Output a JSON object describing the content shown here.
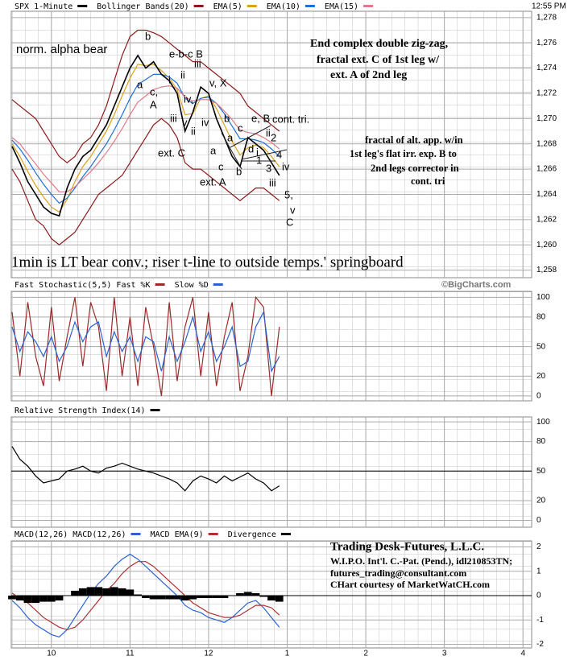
{
  "header": {
    "time": "12:55 PM",
    "credit": "©BigCharts.com"
  },
  "chart_data": [
    {
      "type": "line",
      "title": "SPX 1-Minute",
      "title_color": "#000000",
      "x": [
        9.5,
        9.6,
        9.7,
        9.8,
        9.9,
        10.0,
        10.1,
        10.2,
        10.3,
        10.4,
        10.5,
        10.6,
        10.7,
        10.8,
        10.9,
        11.0,
        11.1,
        11.2,
        11.3,
        11.4,
        11.5,
        11.6,
        11.7,
        11.8,
        11.9,
        12.0,
        12.1,
        12.2,
        12.3,
        12.4,
        12.5,
        12.6,
        12.7,
        12.8,
        12.9
      ],
      "values": [
        1267.8,
        1266.5,
        1265,
        1264,
        1263,
        1262.5,
        1262.3,
        1264.5,
        1266,
        1267,
        1267.5,
        1268.5,
        1269.5,
        1271,
        1272.5,
        1274,
        1275,
        1274,
        1274.5,
        1273.5,
        1273,
        1272,
        1269,
        1270.5,
        1272.5,
        1272,
        1270,
        1268.5,
        1267,
        1266.2,
        1268.5,
        1268,
        1267.5,
        1266.5,
        1265.5
      ],
      "bands": {
        "name": "Bollinger Bands(20)",
        "color": "#8b1a1a",
        "upper": [
          1271.5,
          1271,
          1270.5,
          1270,
          1269,
          1268,
          1267,
          1266.5,
          1267,
          1268,
          1268.5,
          1269.5,
          1271,
          1273,
          1275,
          1276.5,
          1277,
          1277,
          1276.8,
          1276.5,
          1276,
          1275.5,
          1275,
          1274.5,
          1274.5,
          1274,
          1273.5,
          1273,
          1272.5,
          1272,
          1271,
          1270.5,
          1270,
          1269.5,
          1269
        ],
        "lower": [
          1266,
          1265,
          1263.5,
          1262,
          1261.5,
          1260.5,
          1260,
          1260.5,
          1261,
          1262,
          1263,
          1264,
          1264.5,
          1265,
          1265.5,
          1266.5,
          1267.5,
          1268.5,
          1269.5,
          1270,
          1269.5,
          1268.5,
          1266.5,
          1266,
          1266,
          1265.5,
          1265,
          1264.5,
          1264,
          1263.5,
          1264,
          1264.5,
          1264.5,
          1264,
          1263.5
        ]
      },
      "series": [
        {
          "name": "EMA(5)",
          "color": "#d9a21b",
          "values": [
            1268,
            1267,
            1265.8,
            1264.7,
            1263.8,
            1263,
            1262.6,
            1263.6,
            1265,
            1266.2,
            1267,
            1268,
            1269,
            1270.3,
            1271.8,
            1273.2,
            1274.3,
            1274.2,
            1274.3,
            1273.8,
            1273.2,
            1272.3,
            1270.3,
            1270.4,
            1271.6,
            1271.8,
            1270.8,
            1269.5,
            1268.2,
            1267.1,
            1267.7,
            1267.9,
            1267.7,
            1267,
            1266.2
          ]
        },
        {
          "name": "EMA(10)",
          "color": "#1f6fd6",
          "values": [
            1268.3,
            1267.6,
            1266.7,
            1265.7,
            1264.8,
            1264,
            1263.3,
            1263.7,
            1264.5,
            1265.4,
            1266.2,
            1267.1,
            1268,
            1269.1,
            1270.3,
            1271.6,
            1272.7,
            1273.1,
            1273.5,
            1273.5,
            1273.3,
            1272.8,
            1271.6,
            1271.2,
            1271.6,
            1271.7,
            1271.2,
            1270.4,
            1269.4,
            1268.4,
            1268.4,
            1268.3,
            1268.1,
            1267.6,
            1267
          ]
        },
        {
          "name": "EMA(15)",
          "color": "#e07a8a",
          "values": [
            1268.5,
            1268,
            1267.2,
            1266.4,
            1265.6,
            1264.9,
            1264.2,
            1264.2,
            1264.6,
            1265.2,
            1265.8,
            1266.5,
            1267.3,
            1268.2,
            1269.2,
            1270.3,
            1271.3,
            1271.8,
            1272.3,
            1272.5,
            1272.6,
            1272.4,
            1271.7,
            1271.4,
            1271.5,
            1271.5,
            1271.2,
            1270.6,
            1269.9,
            1269.1,
            1268.9,
            1268.8,
            1268.5,
            1268.1,
            1267.6
          ]
        }
      ],
      "xlim": [
        9.49,
        16.11
      ],
      "xticks": [
        10,
        11,
        12,
        13,
        14,
        15,
        16
      ],
      "ylim": [
        1257.4,
        1278.5
      ],
      "yticks": [
        {
          "value": 1278,
          "label": "1,278"
        },
        {
          "value": 1276,
          "label": "1,276"
        },
        {
          "value": 1274,
          "label": "1,274"
        },
        {
          "value": 1272,
          "label": "1,272"
        },
        {
          "value": 1270,
          "label": "1,270"
        },
        {
          "value": 1268,
          "label": "1,268"
        },
        {
          "value": 1266,
          "label": "1,266"
        },
        {
          "value": 1264,
          "label": "1,264"
        },
        {
          "value": 1262,
          "label": "1,262"
        },
        {
          "value": 1260,
          "label": "1,260"
        },
        {
          "value": 1258,
          "label": "1,258"
        }
      ],
      "grid": true,
      "annotations": [
        "norm. alpha bear",
        "b",
        "e-b-c B",
        "ii",
        "iii",
        "v, X",
        "a",
        "c,",
        "A",
        "i",
        "iv,",
        "iii",
        "v",
        "iv",
        "ii",
        "b",
        "ext. C",
        "a",
        "a",
        "c",
        "c",
        "ext. A",
        "b",
        "e, B",
        "cont. tri.",
        "ii",
        "2",
        "d",
        "i",
        "1",
        "4",
        "3",
        "iv",
        "iii",
        "5,",
        "v",
        "C",
        "End complex double zig-zag,",
        "fractal ext. C of 1st leg w/",
        "ext. A of 2nd leg",
        "fractal of alt. app. w/in",
        "1st leg's flat irr. exp. B to",
        "2nd legs corrector in",
        "cont. tri",
        "1min is LT bear conv.; riser t-line to outside temps.' springboard"
      ]
    },
    {
      "type": "line",
      "title": "Fast Stochastic(5,5)",
      "x": [
        9.5,
        9.6,
        9.7,
        9.8,
        9.9,
        10.0,
        10.1,
        10.2,
        10.3,
        10.4,
        10.5,
        10.6,
        10.7,
        10.8,
        10.9,
        11.0,
        11.1,
        11.2,
        11.3,
        11.4,
        11.5,
        11.6,
        11.7,
        11.8,
        11.9,
        12.0,
        12.1,
        12.2,
        12.3,
        12.4,
        12.5,
        12.6,
        12.7,
        12.8,
        12.9
      ],
      "series": [
        {
          "name": "Fast %K",
          "color": "#9b2a2a",
          "values": [
            85,
            20,
            95,
            40,
            10,
            90,
            15,
            60,
            100,
            30,
            95,
            70,
            5,
            100,
            20,
            80,
            10,
            90,
            50,
            0,
            95,
            15,
            70,
            100,
            20,
            85,
            10,
            60,
            95,
            5,
            40,
            100,
            90,
            0,
            70
          ]
        },
        {
          "name": "Slow %D",
          "color": "#2a62d0",
          "values": [
            70,
            45,
            65,
            55,
            40,
            60,
            35,
            50,
            75,
            55,
            70,
            75,
            40,
            65,
            45,
            60,
            35,
            60,
            55,
            25,
            60,
            35,
            55,
            80,
            45,
            65,
            35,
            50,
            70,
            30,
            35,
            70,
            85,
            25,
            40
          ]
        }
      ],
      "xlim": [
        9.49,
        16.11
      ],
      "xticks": [
        10,
        11,
        12,
        13,
        14,
        15,
        16
      ],
      "ylim": [
        -5,
        106
      ],
      "yticks": [
        100,
        80,
        50,
        20,
        0
      ],
      "grid": true
    },
    {
      "type": "line",
      "title": "Relative Strength Index(14)",
      "x": [
        9.5,
        9.6,
        9.7,
        9.8,
        9.9,
        10.0,
        10.1,
        10.2,
        10.3,
        10.4,
        10.5,
        10.6,
        10.7,
        10.8,
        10.9,
        11.0,
        11.1,
        11.2,
        11.3,
        11.4,
        11.5,
        11.6,
        11.7,
        11.8,
        11.9,
        12.0,
        12.1,
        12.2,
        12.3,
        12.4,
        12.5,
        12.6,
        12.7,
        12.8,
        12.9
      ],
      "series": [
        {
          "color": "#000000",
          "values": [
            75,
            62,
            55,
            45,
            38,
            40,
            42,
            50,
            52,
            55,
            50,
            48,
            53,
            55,
            58,
            55,
            52,
            50,
            48,
            45,
            42,
            38,
            30,
            40,
            45,
            42,
            38,
            45,
            40,
            44,
            48,
            42,
            38,
            30,
            35
          ]
        }
      ],
      "xlim": [
        9.49,
        16.11
      ],
      "xticks": [
        10,
        11,
        12,
        13,
        14,
        15,
        16
      ],
      "ylim": [
        -7,
        105
      ],
      "yticks": [
        100,
        80,
        50,
        20,
        0
      ],
      "refline": 50,
      "grid": true
    },
    {
      "type": "line",
      "title": "MACD(12,26)",
      "x": [
        9.5,
        9.6,
        9.7,
        9.8,
        9.9,
        10.0,
        10.1,
        10.2,
        10.3,
        10.4,
        10.5,
        10.6,
        10.7,
        10.8,
        10.9,
        11.0,
        11.1,
        11.2,
        11.3,
        11.4,
        11.5,
        11.6,
        11.7,
        11.8,
        11.9,
        12.0,
        12.1,
        12.2,
        12.3,
        12.4,
        12.5,
        12.6,
        12.7,
        12.8,
        12.9
      ],
      "series": [
        {
          "name": "MACD(12,26)",
          "color": "#2a62d0",
          "values": [
            -0.2,
            -0.5,
            -0.9,
            -1.2,
            -1.4,
            -1.6,
            -1.7,
            -1.4,
            -0.9,
            -0.4,
            0.1,
            0.5,
            0.8,
            1.2,
            1.5,
            1.7,
            1.5,
            1.2,
            0.9,
            0.6,
            0.3,
            0.0,
            -0.4,
            -0.6,
            -0.7,
            -0.9,
            -1.0,
            -1.1,
            -0.9,
            -0.6,
            -0.3,
            -0.2,
            -0.5,
            -0.9,
            -1.3
          ]
        },
        {
          "name": "MACD EMA(9)",
          "color": "#b03030",
          "values": [
            0.1,
            -0.1,
            -0.3,
            -0.6,
            -0.9,
            -1.1,
            -1.3,
            -1.4,
            -1.3,
            -1.0,
            -0.6,
            -0.2,
            0.2,
            0.5,
            0.9,
            1.2,
            1.4,
            1.4,
            1.2,
            0.9,
            0.6,
            0.3,
            0.0,
            -0.3,
            -0.5,
            -0.7,
            -0.8,
            -0.9,
            -0.9,
            -0.8,
            -0.6,
            -0.4,
            -0.4,
            -0.5,
            -0.8
          ]
        },
        {
          "name": "Divergence",
          "color": "#000000",
          "kind": "histogram",
          "values": [
            -0.15,
            -0.2,
            -0.3,
            -0.3,
            -0.25,
            -0.25,
            -0.2,
            0.0,
            0.2,
            0.3,
            0.35,
            0.35,
            0.3,
            0.35,
            0.3,
            0.25,
            0.05,
            -0.1,
            -0.15,
            -0.15,
            -0.15,
            -0.15,
            -0.2,
            -0.15,
            -0.1,
            -0.1,
            -0.1,
            -0.1,
            0.0,
            0.1,
            0.15,
            0.1,
            -0.05,
            -0.2,
            -0.25
          ]
        }
      ],
      "xlim": [
        9.49,
        16.11
      ],
      "xticks": [
        {
          "value": 10,
          "label": "10"
        },
        {
          "value": 11,
          "label": "11"
        },
        {
          "value": 12,
          "label": "12"
        },
        {
          "value": 13,
          "label": "1"
        },
        {
          "value": 14,
          "label": "2"
        },
        {
          "value": 15,
          "label": "3"
        },
        {
          "value": 16,
          "label": "4"
        }
      ],
      "ylim": [
        -2.15,
        2.25
      ],
      "yticks": [
        2,
        1,
        0,
        -1,
        -2
      ],
      "refline": 0,
      "grid": true,
      "annotations": [
        "Trading Desk-Futures, L.L.C.",
        "W.I.P.O. Int'l. C.-Pat. (Pend.), idl210853TN;",
        "futures_trading@consultant.com",
        "CHart courtesy of MarketWatCH.com"
      ]
    }
  ]
}
